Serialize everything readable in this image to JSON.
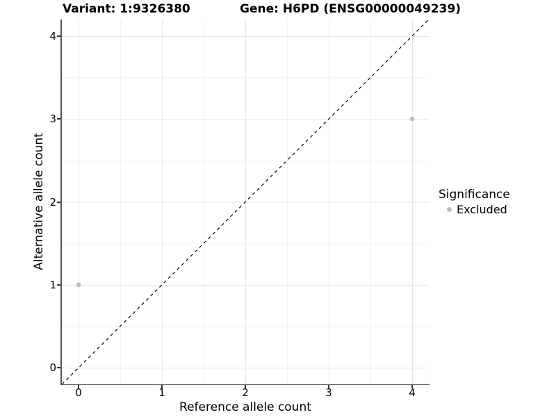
{
  "chart_data": {
    "type": "scatter",
    "title_left": "Variant: 1:9326380",
    "title_right": "Gene: H6PD (ENSG00000049239)",
    "xlabel": "Reference allele count",
    "ylabel": "Alternative allele count",
    "xlim": [
      -0.2,
      4.2
    ],
    "ylim": [
      -0.2,
      4.2
    ],
    "x_ticks": [
      0,
      1,
      2,
      3,
      4
    ],
    "y_ticks": [
      0,
      1,
      2,
      3,
      4
    ],
    "minor_gridlines": [
      0.5,
      1.5,
      2.5,
      3.5
    ],
    "grid": "major and minor gridlines, light gray on white, no panel border",
    "identity_line": {
      "from": [
        -0.2,
        -0.2
      ],
      "to": [
        4.2,
        4.2
      ],
      "style": "dashed",
      "color": "#000000"
    },
    "series": [
      {
        "name": "Excluded",
        "color": "#bdbdbd",
        "points": [
          [
            0,
            1
          ],
          [
            4,
            3
          ]
        ]
      }
    ],
    "legend": {
      "title": "Significance",
      "position": "right",
      "entries": [
        {
          "label": "Excluded",
          "color": "#bdbdbd",
          "marker": "dot-icon"
        }
      ]
    },
    "colors": {
      "grid_major": "#e6e6e6",
      "grid_minor": "#f2f2f2",
      "axis_line": "#555555",
      "tick_mark": "#333333",
      "text": "#000000",
      "point": "#bdbdbd"
    }
  }
}
